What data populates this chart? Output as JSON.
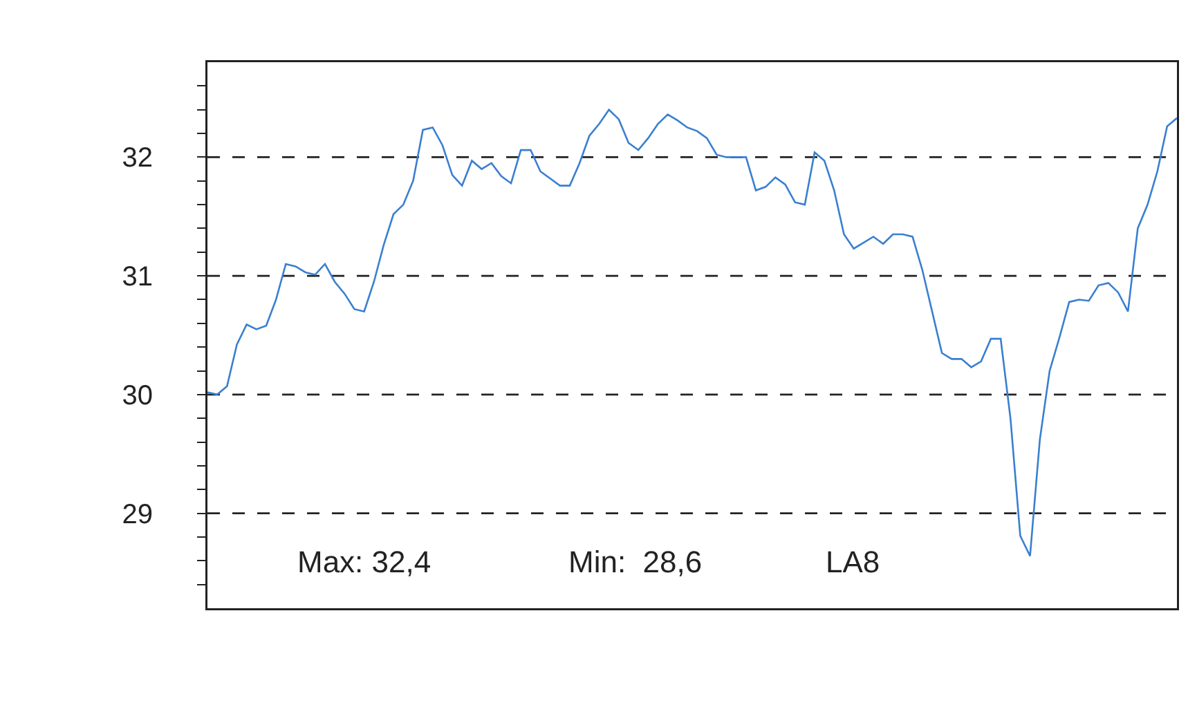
{
  "chart_data": {
    "type": "line",
    "categories": [
      null,
      null,
      null,
      null,
      null,
      null,
      null,
      null,
      null,
      null,
      null,
      null,
      null,
      null,
      null,
      null,
      null,
      null,
      null,
      null,
      null,
      null,
      null,
      null,
      null,
      null,
      null,
      null,
      null,
      null,
      null,
      null,
      null,
      null,
      null,
      null,
      null,
      null,
      null,
      null,
      null,
      null,
      null,
      null,
      null,
      null,
      null,
      null,
      null,
      null,
      null,
      null,
      null,
      null,
      null,
      null,
      null,
      null,
      null,
      null,
      null,
      null,
      null,
      null,
      null,
      null,
      null,
      null,
      null,
      null,
      null,
      null,
      null,
      null,
      null,
      null,
      null,
      null,
      null,
      null,
      null,
      null,
      null,
      null,
      null,
      null,
      null,
      null,
      null,
      null,
      null,
      null,
      null,
      null,
      null,
      null,
      null,
      null,
      null,
      null
    ],
    "series": [
      {
        "color": "#3a7fd0",
        "values": [
          30.02,
          30.0,
          30.07,
          30.42,
          30.59,
          30.55,
          30.58,
          30.8,
          31.1,
          31.08,
          31.03,
          31.01,
          31.1,
          30.95,
          30.85,
          30.72,
          30.7,
          30.95,
          31.26,
          31.52,
          31.6,
          31.8,
          32.23,
          32.25,
          32.1,
          31.85,
          31.76,
          31.97,
          31.9,
          31.95,
          31.84,
          31.78,
          32.06,
          32.06,
          31.88,
          31.82,
          31.76,
          31.76,
          31.95,
          32.18,
          32.28,
          32.4,
          32.32,
          32.12,
          32.06,
          32.16,
          32.28,
          32.36,
          32.31,
          32.25,
          32.22,
          32.16,
          32.02,
          32.0,
          32.0,
          32.0,
          31.72,
          31.75,
          31.83,
          31.77,
          31.62,
          31.6,
          32.04,
          31.97,
          31.72,
          31.35,
          31.23,
          31.28,
          31.33,
          31.27,
          31.35,
          31.35,
          31.33,
          31.05,
          30.7,
          30.35,
          30.3,
          30.3,
          30.23,
          30.28,
          30.47,
          30.47,
          29.8,
          28.81,
          28.64,
          29.62,
          30.2,
          30.48,
          30.78,
          30.8,
          30.79,
          30.92,
          30.94,
          30.86,
          30.7,
          31.4,
          31.6,
          31.88,
          32.26,
          32.33
        ]
      }
    ],
    "ylim": [
      28.2,
      32.8
    ],
    "yticks": [
      {
        "value": 28.4,
        "label": null
      },
      {
        "value": 28.6,
        "label": null
      },
      {
        "value": 28.8,
        "label": null
      },
      29,
      {
        "value": 29.2,
        "label": null
      },
      {
        "value": 29.4,
        "label": null
      },
      {
        "value": 29.6,
        "label": null
      },
      {
        "value": 29.8,
        "label": null
      },
      30,
      {
        "value": 30.2,
        "label": null
      },
      {
        "value": 30.4,
        "label": null
      },
      {
        "value": 30.6,
        "label": null
      },
      {
        "value": 30.8,
        "label": null
      },
      31,
      {
        "value": 31.2,
        "label": null
      },
      {
        "value": 31.4,
        "label": null
      },
      {
        "value": 31.6,
        "label": null
      },
      {
        "value": 31.8,
        "label": null
      },
      32,
      {
        "value": 32.2,
        "label": null
      },
      {
        "value": 32.4,
        "label": null
      },
      {
        "value": 32.6,
        "label": null
      }
    ],
    "grid": "y",
    "line_style": "solid",
    "marker": "none",
    "legend": false,
    "tick_labels": "y",
    "annotations": [
      "Max: 32,4",
      "Min:  28,6",
      "LA8"
    ]
  }
}
